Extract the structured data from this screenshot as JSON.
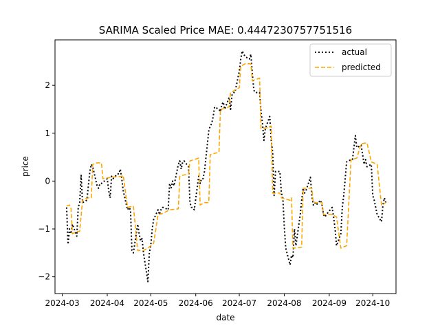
{
  "chart_data": {
    "type": "line",
    "title": "SARIMA Scaled Price MAE: 0.4447230757751516",
    "xlabel": "date",
    "ylabel": "price",
    "x_range": [
      "2024-02-25",
      "2024-10-17"
    ],
    "ylim": [
      -2.35,
      2.95
    ],
    "x_ticks": [
      {
        "date": "2024-03-01",
        "label": "2024-03"
      },
      {
        "date": "2024-04-01",
        "label": "2024-04"
      },
      {
        "date": "2024-05-01",
        "label": "2024-05"
      },
      {
        "date": "2024-06-01",
        "label": "2024-06"
      },
      {
        "date": "2024-07-01",
        "label": "2024-07"
      },
      {
        "date": "2024-08-01",
        "label": "2024-08"
      },
      {
        "date": "2024-09-01",
        "label": "2024-09"
      },
      {
        "date": "2024-10-01",
        "label": "2024-10"
      }
    ],
    "y_ticks": [
      {
        "value": -2,
        "label": "−2"
      },
      {
        "value": -1,
        "label": "−1"
      },
      {
        "value": 0,
        "label": "0"
      },
      {
        "value": 1,
        "label": "1"
      },
      {
        "value": 2,
        "label": "2"
      }
    ],
    "grid": false,
    "legend_position": "top-right",
    "series": [
      {
        "name": "actual",
        "color": "#000000",
        "style": "dotted",
        "points": [
          [
            "2024-03-04",
            -0.55
          ],
          [
            "2024-03-05",
            -1.32
          ],
          [
            "2024-03-06",
            -1.0
          ],
          [
            "2024-03-07",
            -1.1
          ],
          [
            "2024-03-08",
            -0.9
          ],
          [
            "2024-03-11",
            -1.15
          ],
          [
            "2024-03-12",
            -0.55
          ],
          [
            "2024-03-13",
            -0.45
          ],
          [
            "2024-03-14",
            0.12
          ],
          [
            "2024-03-15",
            -0.45
          ],
          [
            "2024-03-18",
            -0.4
          ],
          [
            "2024-03-19",
            -0.1
          ],
          [
            "2024-03-20",
            0.2
          ],
          [
            "2024-03-21",
            0.35
          ],
          [
            "2024-03-22",
            0.3
          ],
          [
            "2024-03-25",
            -0.1
          ],
          [
            "2024-03-26",
            -0.15
          ],
          [
            "2024-03-27",
            -0.05
          ],
          [
            "2024-03-28",
            -0.05
          ],
          [
            "2024-04-01",
            0.05
          ],
          [
            "2024-04-02",
            -0.2
          ],
          [
            "2024-04-03",
            -0.35
          ],
          [
            "2024-04-04",
            0.1
          ],
          [
            "2024-04-05",
            0.05
          ],
          [
            "2024-04-08",
            0.15
          ],
          [
            "2024-04-09",
            0.15
          ],
          [
            "2024-04-10",
            0.25
          ],
          [
            "2024-04-11",
            0.05
          ],
          [
            "2024-04-12",
            -0.2
          ],
          [
            "2024-04-15",
            -0.6
          ],
          [
            "2024-04-16",
            -0.55
          ],
          [
            "2024-04-17",
            -0.6
          ],
          [
            "2024-04-18",
            -1.45
          ],
          [
            "2024-04-19",
            -1.5
          ],
          [
            "2024-04-22",
            -0.9
          ],
          [
            "2024-04-23",
            -1.1
          ],
          [
            "2024-04-24",
            -1.25
          ],
          [
            "2024-04-25",
            -1.2
          ],
          [
            "2024-04-26",
            -1.5
          ],
          [
            "2024-04-29",
            -2.1
          ],
          [
            "2024-04-30",
            -1.5
          ],
          [
            "2024-05-01",
            -1.35
          ],
          [
            "2024-05-02",
            -1.0
          ],
          [
            "2024-05-03",
            -0.8
          ],
          [
            "2024-05-06",
            -0.6
          ],
          [
            "2024-05-07",
            -0.7
          ],
          [
            "2024-05-08",
            -0.6
          ],
          [
            "2024-05-09",
            -0.55
          ],
          [
            "2024-05-10",
            -0.55
          ],
          [
            "2024-05-13",
            -0.6
          ],
          [
            "2024-05-14",
            -0.05
          ],
          [
            "2024-05-15",
            -0.15
          ],
          [
            "2024-05-16",
            0.0
          ],
          [
            "2024-05-17",
            -0.1
          ],
          [
            "2024-05-20",
            0.35
          ],
          [
            "2024-05-21",
            0.42
          ],
          [
            "2024-05-22",
            0.25
          ],
          [
            "2024-05-23",
            0.4
          ],
          [
            "2024-05-24",
            0.42
          ],
          [
            "2024-05-27",
            0.3
          ],
          [
            "2024-05-28",
            -0.45
          ],
          [
            "2024-05-29",
            -0.55
          ],
          [
            "2024-05-30",
            -0.55
          ],
          [
            "2024-05-31",
            -0.6
          ],
          [
            "2024-06-03",
            0.1
          ],
          [
            "2024-06-04",
            -0.05
          ],
          [
            "2024-06-05",
            0.05
          ],
          [
            "2024-06-06",
            0.05
          ],
          [
            "2024-06-07",
            0.2
          ],
          [
            "2024-06-10",
            1.05
          ],
          [
            "2024-06-11",
            1.15
          ],
          [
            "2024-06-12",
            1.2
          ],
          [
            "2024-06-13",
            1.35
          ],
          [
            "2024-06-14",
            1.55
          ],
          [
            "2024-06-17",
            1.5
          ],
          [
            "2024-06-18",
            1.45
          ],
          [
            "2024-06-19",
            1.6
          ],
          [
            "2024-06-20",
            1.65
          ],
          [
            "2024-06-21",
            1.5
          ],
          [
            "2024-06-24",
            1.75
          ],
          [
            "2024-06-25",
            1.5
          ],
          [
            "2024-06-26",
            1.8
          ],
          [
            "2024-06-27",
            1.85
          ],
          [
            "2024-06-28",
            1.85
          ],
          [
            "2024-07-01",
            2.3
          ],
          [
            "2024-07-02",
            2.55
          ],
          [
            "2024-07-03",
            2.72
          ],
          [
            "2024-07-05",
            2.6
          ],
          [
            "2024-07-08",
            2.55
          ],
          [
            "2024-07-09",
            2.65
          ],
          [
            "2024-07-10",
            2.25
          ],
          [
            "2024-07-11",
            1.9
          ],
          [
            "2024-07-12",
            1.85
          ],
          [
            "2024-07-15",
            1.85
          ],
          [
            "2024-07-16",
            1.45
          ],
          [
            "2024-07-17",
            1.2
          ],
          [
            "2024-07-18",
            0.85
          ],
          [
            "2024-07-19",
            1.1
          ],
          [
            "2024-07-22",
            1.35
          ],
          [
            "2024-07-23",
            0.85
          ],
          [
            "2024-07-24",
            0.6
          ],
          [
            "2024-07-25",
            -0.3
          ],
          [
            "2024-07-26",
            0.2
          ],
          [
            "2024-07-29",
            0.2
          ],
          [
            "2024-07-30",
            -0.25
          ],
          [
            "2024-07-31",
            -0.35
          ],
          [
            "2024-08-01",
            -0.95
          ],
          [
            "2024-08-02",
            -1.4
          ],
          [
            "2024-08-05",
            -1.75
          ],
          [
            "2024-08-06",
            -1.55
          ],
          [
            "2024-08-07",
            -1.6
          ],
          [
            "2024-08-08",
            -1.0
          ],
          [
            "2024-08-09",
            -1.35
          ],
          [
            "2024-08-12",
            -0.7
          ],
          [
            "2024-08-13",
            -0.4
          ],
          [
            "2024-08-14",
            -0.15
          ],
          [
            "2024-08-15",
            -0.25
          ],
          [
            "2024-08-16",
            -0.2
          ],
          [
            "2024-08-19",
            0.08
          ],
          [
            "2024-08-20",
            -0.3
          ],
          [
            "2024-08-21",
            -0.5
          ],
          [
            "2024-08-22",
            -0.45
          ],
          [
            "2024-08-23",
            -0.5
          ],
          [
            "2024-08-26",
            -0.4
          ],
          [
            "2024-08-27",
            -0.5
          ],
          [
            "2024-08-28",
            -0.7
          ],
          [
            "2024-08-29",
            -0.75
          ],
          [
            "2024-08-30",
            -0.7
          ],
          [
            "2024-09-03",
            -0.55
          ],
          [
            "2024-09-04",
            -0.75
          ],
          [
            "2024-09-05",
            -1.0
          ],
          [
            "2024-09-06",
            -1.35
          ],
          [
            "2024-09-09",
            -1.1
          ],
          [
            "2024-09-10",
            -0.55
          ],
          [
            "2024-09-11",
            -0.3
          ],
          [
            "2024-09-12",
            0.05
          ],
          [
            "2024-09-13",
            0.4
          ],
          [
            "2024-09-16",
            0.45
          ],
          [
            "2024-09-17",
            0.45
          ],
          [
            "2024-09-18",
            0.7
          ],
          [
            "2024-09-19",
            0.95
          ],
          [
            "2024-09-20",
            0.7
          ],
          [
            "2024-09-23",
            0.75
          ],
          [
            "2024-09-24",
            0.55
          ],
          [
            "2024-09-25",
            0.35
          ],
          [
            "2024-09-26",
            0.45
          ],
          [
            "2024-09-27",
            0.3
          ],
          [
            "2024-09-30",
            0.35
          ],
          [
            "2024-10-01",
            -0.3
          ],
          [
            "2024-10-02",
            -0.4
          ],
          [
            "2024-10-03",
            -0.55
          ],
          [
            "2024-10-04",
            -0.7
          ],
          [
            "2024-10-07",
            -0.85
          ],
          [
            "2024-10-08",
            -0.5
          ],
          [
            "2024-10-09",
            -0.35
          ],
          [
            "2024-10-10",
            -0.45
          ]
        ]
      },
      {
        "name": "predicted",
        "color": "#ffa500",
        "style": "dashed",
        "points": [
          [
            "2024-03-04",
            -0.52
          ],
          [
            "2024-03-06",
            -0.5
          ],
          [
            "2024-03-07",
            -0.55
          ],
          [
            "2024-03-08",
            -1.1
          ],
          [
            "2024-03-12",
            -1.05
          ],
          [
            "2024-03-13",
            -1.05
          ],
          [
            "2024-03-15",
            -0.4
          ],
          [
            "2024-03-19",
            -0.35
          ],
          [
            "2024-03-21",
            -0.35
          ],
          [
            "2024-03-22",
            0.35
          ],
          [
            "2024-03-25",
            0.38
          ],
          [
            "2024-03-28",
            0.38
          ],
          [
            "2024-03-29",
            0.05
          ],
          [
            "2024-04-04",
            0.08
          ],
          [
            "2024-04-11",
            0.1
          ],
          [
            "2024-04-12",
            0.12
          ],
          [
            "2024-04-15",
            -0.55
          ],
          [
            "2024-04-19",
            -0.52
          ],
          [
            "2024-04-22",
            -1.45
          ],
          [
            "2024-04-26",
            -1.45
          ],
          [
            "2024-04-29",
            -1.4
          ],
          [
            "2024-05-03",
            -1.3
          ],
          [
            "2024-05-06",
            -0.7
          ],
          [
            "2024-05-09",
            -0.68
          ],
          [
            "2024-05-14",
            -0.6
          ],
          [
            "2024-05-20",
            -0.58
          ],
          [
            "2024-05-21",
            0.1
          ],
          [
            "2024-05-23",
            0.12
          ],
          [
            "2024-05-27",
            0.15
          ],
          [
            "2024-05-28",
            0.42
          ],
          [
            "2024-06-03",
            0.48
          ],
          [
            "2024-06-04",
            -0.5
          ],
          [
            "2024-06-07",
            -0.45
          ],
          [
            "2024-06-10",
            -0.45
          ],
          [
            "2024-06-11",
            0.55
          ],
          [
            "2024-06-14",
            0.58
          ],
          [
            "2024-06-17",
            0.6
          ],
          [
            "2024-06-18",
            1.5
          ],
          [
            "2024-06-21",
            1.52
          ],
          [
            "2024-06-24",
            1.55
          ],
          [
            "2024-06-25",
            1.85
          ],
          [
            "2024-06-28",
            1.9
          ],
          [
            "2024-07-01",
            1.95
          ],
          [
            "2024-07-02",
            2.4
          ],
          [
            "2024-07-05",
            2.45
          ],
          [
            "2024-07-09",
            2.45
          ],
          [
            "2024-07-10",
            2.1
          ],
          [
            "2024-07-15",
            2.15
          ],
          [
            "2024-07-16",
            1.1
          ],
          [
            "2024-07-22",
            1.12
          ],
          [
            "2024-07-23",
            1.15
          ],
          [
            "2024-07-24",
            -0.25
          ],
          [
            "2024-07-29",
            -0.25
          ],
          [
            "2024-07-30",
            -0.35
          ],
          [
            "2024-08-05",
            -0.4
          ],
          [
            "2024-08-06",
            -0.35
          ],
          [
            "2024-08-07",
            -1.4
          ],
          [
            "2024-08-13",
            -1.38
          ],
          [
            "2024-08-14",
            -0.15
          ],
          [
            "2024-08-19",
            -0.15
          ],
          [
            "2024-08-20",
            -0.15
          ],
          [
            "2024-08-21",
            -0.45
          ],
          [
            "2024-08-27",
            -0.45
          ],
          [
            "2024-08-28",
            -0.7
          ],
          [
            "2024-09-03",
            -0.7
          ],
          [
            "2024-09-06",
            -0.75
          ],
          [
            "2024-09-09",
            -1.4
          ],
          [
            "2024-09-13",
            -1.35
          ],
          [
            "2024-09-16",
            0.45
          ],
          [
            "2024-09-20",
            0.48
          ],
          [
            "2024-09-23",
            0.78
          ],
          [
            "2024-09-27",
            0.8
          ],
          [
            "2024-09-30",
            0.4
          ],
          [
            "2024-10-04",
            0.35
          ],
          [
            "2024-10-07",
            -0.5
          ],
          [
            "2024-10-10",
            -0.45
          ]
        ]
      }
    ]
  }
}
